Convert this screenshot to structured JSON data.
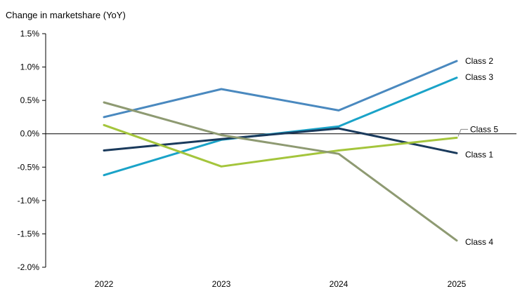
{
  "chart_data": {
    "type": "line",
    "title": "Change in marketshare (YoY)",
    "xlabel": "",
    "ylabel": "",
    "categories": [
      "2022",
      "2023",
      "2024",
      "2025"
    ],
    "ylim": [
      -2.0,
      1.5
    ],
    "y_ticks": [
      1.5,
      1.0,
      0.5,
      0.0,
      -0.5,
      -1.0,
      -1.5,
      -2.0
    ],
    "y_tick_labels": [
      "1.5%",
      "1.0%",
      "0.5%",
      "0.0%",
      "-0.5%",
      "-1.0%",
      "-1.5%",
      "-2.0%"
    ],
    "grid": false,
    "legend": "direct labels at line ends",
    "series": [
      {
        "name": "Class 2",
        "color": "#4a89bf",
        "values": [
          0.25,
          0.67,
          0.35,
          1.09
        ]
      },
      {
        "name": "Class 3",
        "color": "#1aa3c8",
        "values": [
          -0.62,
          -0.09,
          0.11,
          0.84
        ]
      },
      {
        "name": "Class 5",
        "color": "#a4c53c",
        "values": [
          0.13,
          -0.49,
          -0.25,
          -0.06
        ]
      },
      {
        "name": "Class 1",
        "color": "#1a3a5c",
        "values": [
          -0.25,
          -0.08,
          0.08,
          -0.29
        ]
      },
      {
        "name": "Class 4",
        "color": "#8e9a72",
        "values": [
          0.47,
          -0.02,
          -0.3,
          -1.6
        ]
      }
    ]
  }
}
